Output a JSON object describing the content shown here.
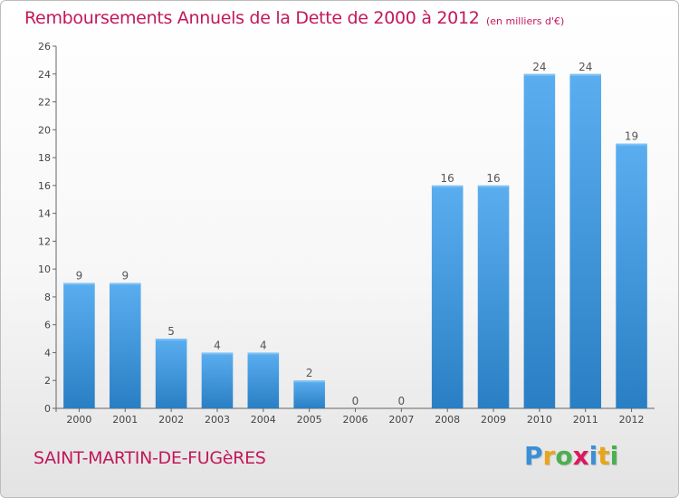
{
  "title": "Remboursements Annuels de la Dette de 2000 à 2012",
  "subtitle": "(en milliers d'€)",
  "commune": "SAINT-MARTIN-DE-FUGèRES",
  "logo": {
    "letters": [
      "P",
      "r",
      "o",
      "x",
      "i",
      "t",
      "i"
    ],
    "colors": [
      "#3a8fd6",
      "#e8a51c",
      "#4caf50",
      "#d81b60",
      "#3a8fd6",
      "#e8a51c",
      "#4caf50"
    ]
  },
  "colors": {
    "bar_light": "#5aaef0",
    "bar_dark": "#2a7fc4",
    "title": "#c2185b"
  },
  "chart_data": {
    "type": "bar",
    "categories": [
      "2000",
      "2001",
      "2002",
      "2003",
      "2004",
      "2005",
      "2006",
      "2007",
      "2008",
      "2009",
      "2010",
      "2011",
      "2012"
    ],
    "values": [
      9,
      9,
      5,
      4,
      4,
      2,
      0,
      0,
      16,
      16,
      24,
      24,
      19
    ],
    "title": "Remboursements Annuels de la Dette de 2000 à 2012",
    "ylim": [
      0,
      26
    ],
    "yticks": [
      0,
      2,
      4,
      6,
      8,
      10,
      12,
      14,
      16,
      18,
      20,
      22,
      24,
      26
    ],
    "grid": false,
    "legend": "none"
  }
}
